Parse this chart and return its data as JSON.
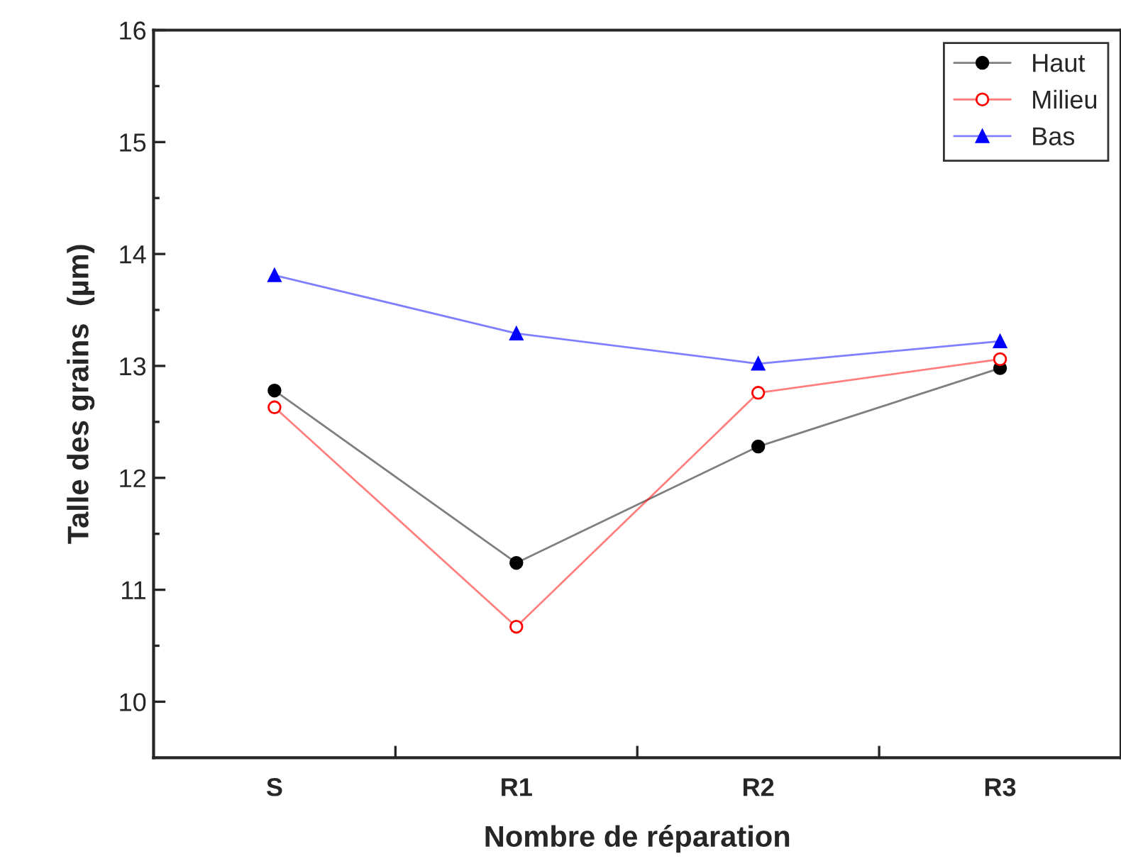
{
  "chart_data": {
    "type": "line",
    "xlabel": "Nombre de réparation",
    "ylabel": "Talle des grains  (µm)",
    "categories": [
      "S",
      "R1",
      "R2",
      "R3"
    ],
    "series": [
      {
        "name": "Haut",
        "color": "#000000",
        "values": [
          12.78,
          11.24,
          12.28,
          12.98
        ],
        "marker": "circle"
      },
      {
        "name": "Milieu",
        "color": "#ff0000",
        "values": [
          12.63,
          10.67,
          12.76,
          13.06
        ],
        "marker": "circle"
      },
      {
        "name": "Bas",
        "color": "#0000ff",
        "values": [
          13.81,
          13.29,
          13.02,
          13.22
        ],
        "marker": "triangle"
      }
    ],
    "ylim": [
      9.5,
      16
    ],
    "yticks": [
      10,
      11,
      12,
      13,
      14,
      15,
      16
    ],
    "grid": false,
    "legend": "top right",
    "line_style": "solid"
  }
}
